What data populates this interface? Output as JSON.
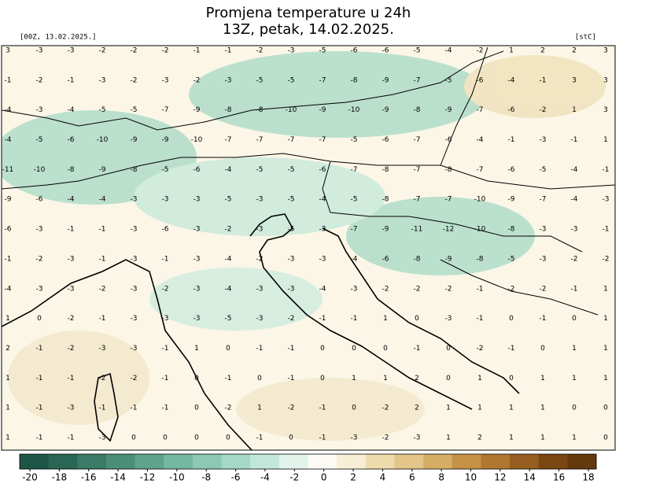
{
  "header": {
    "title": "Promjena temperature u 24h",
    "subtitle": "13Z, petak, 14.02.2025.",
    "left_label": "[00Z, 13.02.2025.]",
    "right_label": "[stC]"
  },
  "map": {
    "background": "#fbf6e6",
    "rows": [
      [
        3,
        -3,
        -3,
        -2,
        -2,
        -2,
        -1,
        -1,
        -2,
        -3,
        -5,
        -6,
        -6,
        -5,
        -4,
        -2,
        1,
        2,
        2,
        3
      ],
      [
        -1,
        -2,
        -1,
        -3,
        -2,
        -3,
        -2,
        -3,
        -5,
        -5,
        -7,
        -8,
        -9,
        -7,
        -5,
        -6,
        -4,
        -1,
        3,
        3
      ],
      [
        -4,
        -3,
        -4,
        -5,
        -5,
        -7,
        -9,
        -8,
        -8,
        -10,
        -9,
        -10,
        -9,
        -8,
        -9,
        -7,
        -6,
        -2,
        1,
        3
      ],
      [
        -4,
        -5,
        -6,
        -10,
        -9,
        -9,
        -10,
        -7,
        -7,
        -7,
        -7,
        -5,
        -6,
        -7,
        -6,
        -4,
        -1,
        -3,
        -1,
        1
      ],
      [
        -11,
        -10,
        -8,
        -9,
        -8,
        -5,
        -6,
        -4,
        -5,
        -5,
        -6,
        -7,
        -8,
        -7,
        -8,
        -7,
        -6,
        -5,
        -4,
        -1
      ],
      [
        -9,
        -6,
        -4,
        -4,
        -3,
        -3,
        -3,
        -5,
        -3,
        -5,
        -4,
        -5,
        -8,
        -7,
        -7,
        -10,
        -9,
        -7,
        -4,
        -3
      ],
      [
        -6,
        -3,
        -1,
        -1,
        -3,
        -6,
        -3,
        -2,
        -3,
        -5,
        -3,
        -7,
        -9,
        -11,
        -12,
        -10,
        -8,
        -3,
        -3,
        -1
      ],
      [
        -1,
        -2,
        -3,
        -1,
        -3,
        -1,
        -3,
        -4,
        -2,
        -3,
        -3,
        -4,
        -6,
        -8,
        -9,
        -8,
        -5,
        -3,
        -2,
        -2
      ],
      [
        -4,
        -3,
        -3,
        -2,
        -3,
        -2,
        -3,
        -4,
        -3,
        -3,
        -4,
        -3,
        -2,
        -2,
        -2,
        -1,
        -2,
        -2,
        -1,
        1
      ],
      [
        1,
        0,
        -2,
        -1,
        -3,
        -3,
        -3,
        -5,
        -3,
        -2,
        -1,
        -1,
        1,
        0,
        -3,
        -1,
        0,
        -1,
        0,
        1
      ],
      [
        2,
        -1,
        -2,
        -3,
        -3,
        -1,
        1,
        0,
        -1,
        -1,
        0,
        0,
        0,
        -1,
        0,
        -2,
        -1,
        0,
        1,
        1
      ],
      [
        1,
        -1,
        -1,
        -2,
        -2,
        -1,
        0,
        -1,
        0,
        -1,
        0,
        1,
        1,
        2,
        0,
        1,
        0,
        1,
        1,
        1
      ],
      [
        1,
        -1,
        -3,
        -1,
        -1,
        -1,
        0,
        -2,
        1,
        -2,
        -1,
        0,
        -2,
        2,
        1,
        1,
        1,
        1,
        0,
        0
      ],
      [
        1,
        -1,
        -1,
        -3,
        0,
        0,
        0,
        0,
        -1,
        0,
        -1,
        -3,
        -2,
        -3,
        1,
        2,
        1,
        1,
        1,
        0
      ]
    ]
  },
  "colorbar": {
    "ticks": [
      -20,
      -18,
      -16,
      -14,
      -12,
      -10,
      -8,
      -6,
      -4,
      -2,
      0,
      2,
      4,
      6,
      8,
      10,
      12,
      14,
      16,
      18
    ],
    "colors": [
      "#1d5546",
      "#2a6654",
      "#3a7a66",
      "#4c8f79",
      "#5fa38c",
      "#75b7a0",
      "#8cc8b3",
      "#a5d8c6",
      "#c2e7da",
      "#e2f3ec",
      "#fbfaf4",
      "#f7eed6",
      "#eedbab",
      "#e3c589",
      "#d6ad65",
      "#c69246",
      "#b07731",
      "#955e20",
      "#7a4712",
      "#64390c"
    ]
  }
}
